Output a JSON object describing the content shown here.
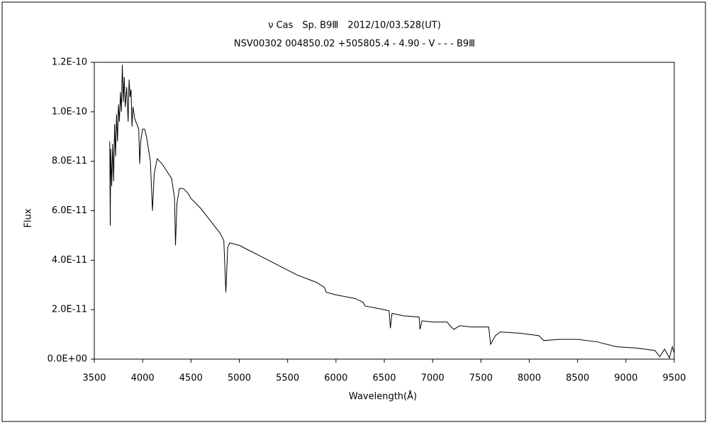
{
  "chart_data": {
    "type": "line",
    "title": "ν Cas　Sp. B9Ⅲ　2012/10/03.528(UT)",
    "subtitle": "NSV00302 004850.02 +505805.4 - 4.90 - V - - - B9Ⅲ",
    "xlabel": "Wavelength(Å)",
    "ylabel": "Flux",
    "xlim": [
      3500,
      9500
    ],
    "xticks": [
      3500,
      4000,
      4500,
      5000,
      5500,
      6000,
      6500,
      7000,
      7500,
      8000,
      8500,
      9000,
      9500
    ],
    "ylim": [
      0,
      1.2e-10
    ],
    "yticks": [
      {
        "value": 0,
        "label": "0.0E+00"
      },
      {
        "value": 2e-11,
        "label": "2.0E-11"
      },
      {
        "value": 4e-11,
        "label": "4.0E-11"
      },
      {
        "value": 6e-11,
        "label": "6.0E-11"
      },
      {
        "value": 8e-11,
        "label": "8.0E-11"
      },
      {
        "value": 1e-10,
        "label": "1.0E-10"
      },
      {
        "value": 1.2e-10,
        "label": "1.2E-10"
      }
    ],
    "grid": false,
    "color": "#000000",
    "x": [
      3660,
      3665,
      3670,
      3680,
      3690,
      3700,
      3710,
      3720,
      3730,
      3740,
      3750,
      3760,
      3770,
      3780,
      3790,
      3800,
      3810,
      3820,
      3835,
      3850,
      3860,
      3870,
      3880,
      3890,
      3900,
      3920,
      3940,
      3960,
      3970,
      3980,
      4000,
      4020,
      4040,
      4060,
      4080,
      4102,
      4120,
      4150,
      4200,
      4250,
      4300,
      4330,
      4340,
      4355,
      4380,
      4420,
      4471,
      4500,
      4600,
      4700,
      4800,
      4840,
      4861,
      4880,
      4900,
      5000,
      5100,
      5200,
      5300,
      5400,
      5500,
      5600,
      5700,
      5800,
      5880,
      5900,
      6000,
      6200,
      6280,
      6300,
      6500,
      6550,
      6563,
      6580,
      6700,
      6860,
      6870,
      6890,
      7000,
      7150,
      7180,
      7220,
      7280,
      7400,
      7580,
      7600,
      7650,
      7700,
      7900,
      8100,
      8150,
      8300,
      8500,
      8700,
      8900,
      9100,
      9300,
      9350,
      9400,
      9450,
      9480,
      9500
    ],
    "values": [
      8.8e-11,
      5.4e-11,
      8.5e-11,
      7e-11,
      8.7e-11,
      7.2e-11,
      9.5e-11,
      8.2e-11,
      9.9e-11,
      8.8e-11,
      1.03e-10,
      9.6e-11,
      1.08e-10,
      1e-10,
      1.19e-10,
      1.04e-10,
      1.14e-10,
      1.02e-10,
      1.1e-10,
      9.6e-11,
      1.13e-10,
      1.06e-10,
      1.09e-10,
      9.4e-11,
      1.02e-10,
      9.7e-11,
      9.5e-11,
      9.3e-11,
      7.9e-11,
      8.8e-11,
      9.3e-11,
      9.3e-11,
      9e-11,
      8.5e-11,
      8e-11,
      6e-11,
      7.5e-11,
      8.1e-11,
      7.9e-11,
      7.6e-11,
      7.3e-11,
      6.5e-11,
      4.6e-11,
      6.3e-11,
      6.9e-11,
      6.9e-11,
      6.7e-11,
      6.5e-11,
      6.1e-11,
      5.6e-11,
      5.1e-11,
      4.8e-11,
      2.7e-11,
      4.5e-11,
      4.7e-11,
      4.6e-11,
      4.4e-11,
      4.2e-11,
      4e-11,
      3.8e-11,
      3.6e-11,
      3.4e-11,
      3.25e-11,
      3.1e-11,
      2.9e-11,
      2.7e-11,
      2.6e-11,
      2.45e-11,
      2.3e-11,
      2.15e-11,
      2e-11,
      1.95e-11,
      1.25e-11,
      1.85e-11,
      1.75e-11,
      1.7e-11,
      1.2e-11,
      1.55e-11,
      1.5e-11,
      1.5e-11,
      1.35e-11,
      1.2e-11,
      1.35e-11,
      1.3e-11,
      1.3e-11,
      6e-12,
      9.5e-12,
      1.1e-11,
      1.05e-11,
      9.5e-12,
      7.5e-12,
      8e-12,
      8e-12,
      7e-12,
      5e-12,
      4.5e-12,
      3.5e-12,
      1e-12,
      4e-12,
      5e-13,
      5e-12,
      2.5e-12
    ]
  }
}
